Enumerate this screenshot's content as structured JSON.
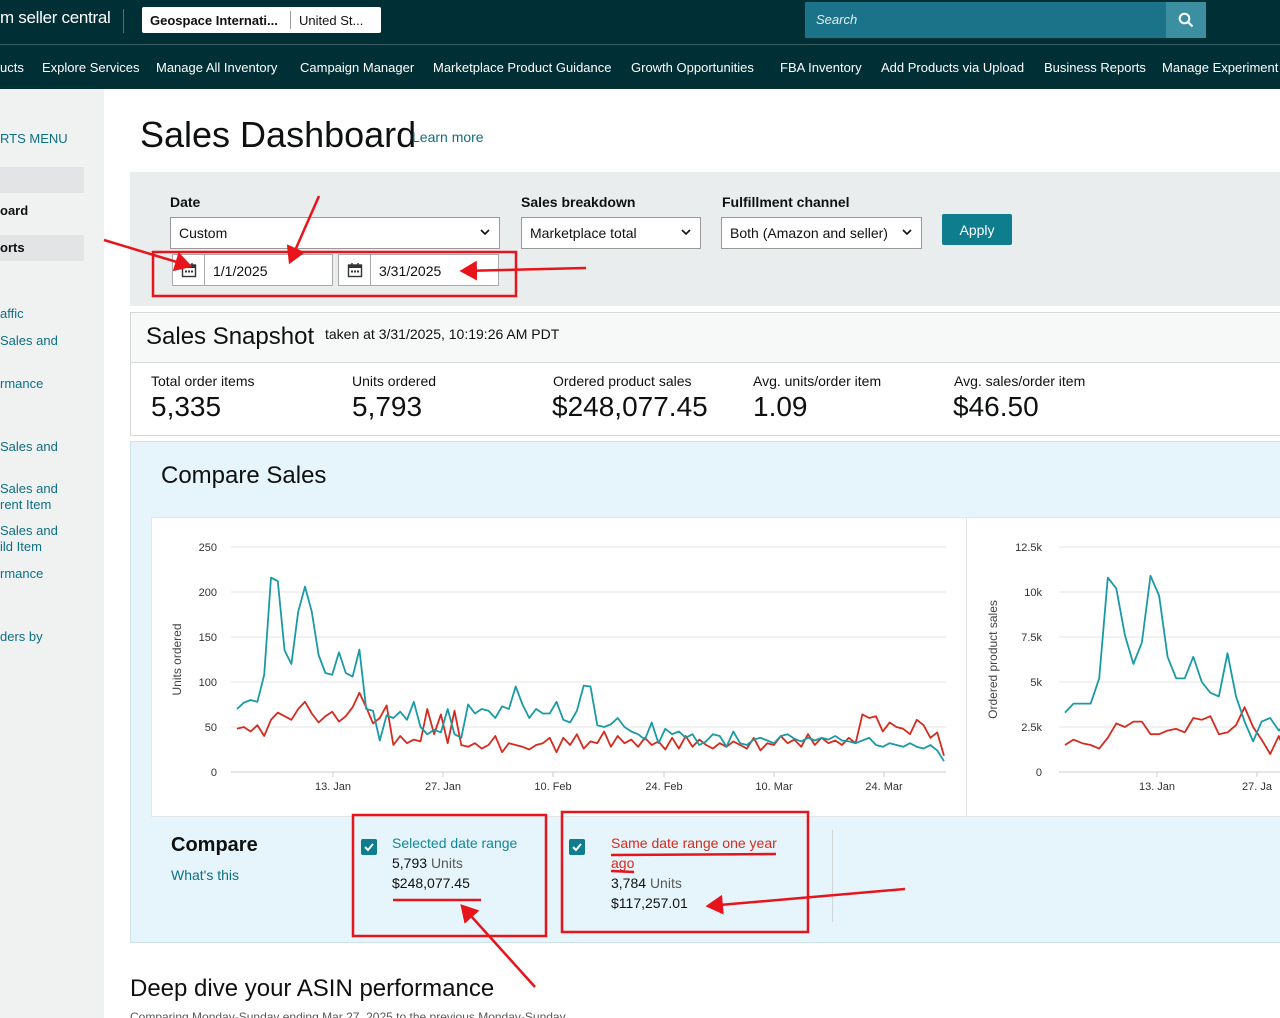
{
  "header": {
    "logo": "m seller central",
    "account_name": "Geospace Internati...",
    "account_region": "United St...",
    "search_placeholder": "Search"
  },
  "nav": [
    "ucts",
    "Explore Services",
    "Manage All Inventory",
    "Campaign Manager",
    "Marketplace Product Guidance",
    "Growth Opportunities",
    "FBA Inventory",
    "Add Products via Upload",
    "Business Reports",
    "Manage Experiment"
  ],
  "sidebar": {
    "title": "RTS MENU",
    "items": [
      "oard",
      "orts",
      "affic",
      "Sales and",
      "rmance",
      "Sales and",
      "Sales and",
      "rent Item",
      "Sales and",
      "ild Item",
      "rmance",
      "ders by"
    ]
  },
  "page": {
    "title": "Sales Dashboard",
    "learn_more": "Learn more"
  },
  "filters": {
    "date_label": "Date",
    "date_value": "Custom",
    "breakdown_label": "Sales breakdown",
    "breakdown_value": "Marketplace total",
    "channel_label": "Fulfillment channel",
    "channel_value": "Both (Amazon and seller)",
    "apply": "Apply",
    "start_date": "1/1/2025",
    "end_date": "3/31/2025"
  },
  "snapshot": {
    "title": "Sales Snapshot",
    "taken": "taken at 3/31/2025, 10:19:26 AM PDT",
    "metrics": [
      {
        "label": "Total order items",
        "value": "5,335"
      },
      {
        "label": "Units ordered",
        "value": "5,793"
      },
      {
        "label": "Ordered product sales",
        "value": "$248,077.45"
      },
      {
        "label": "Avg. units/order item",
        "value": "1.09"
      },
      {
        "label": "Avg. sales/order item",
        "value": "$46.50"
      }
    ]
  },
  "compare_sales": {
    "title": "Compare Sales",
    "compare_label": "Compare",
    "whats_this": "What's this",
    "selected": {
      "title": "Selected date range",
      "units": "5,793",
      "units_label": "Units",
      "sales": "$248,077.45"
    },
    "previous": {
      "title": "Same date range one year ago",
      "units": "3,784",
      "units_label": "Units",
      "sales": "$117,257.01"
    }
  },
  "deep_dive": {
    "title": "Deep dive your ASIN performance",
    "subtitle": "Comparing Monday-Sunday ending Mar 27, 2025 to the previous Monday-Sunday"
  },
  "colors": {
    "selected": "#1a9aa5",
    "previous": "#d52b1e",
    "annotation": "#e8141b"
  },
  "chart_data": [
    {
      "type": "line",
      "ylabel": "Units ordered",
      "ylim": [
        0,
        250
      ],
      "yticks": [
        "0",
        "50",
        "100",
        "150",
        "200",
        "250"
      ],
      "xticks": [
        "13. Jan",
        "27. Jan",
        "10. Feb",
        "24. Feb",
        "10. Mar",
        "24. Mar"
      ],
      "series": [
        {
          "name": "Selected date range",
          "color": "#1a9aa5",
          "values": [
            70,
            77,
            80,
            78,
            108,
            216,
            212,
            135,
            120,
            178,
            206,
            178,
            130,
            110,
            108,
            133,
            110,
            106,
            136,
            70,
            68,
            35,
            63,
            60,
            67,
            58,
            78,
            50,
            42,
            47,
            44,
            70,
            42,
            38,
            75,
            65,
            70,
            68,
            60,
            73,
            70,
            95,
            75,
            60,
            70,
            65,
            65,
            78,
            58,
            55,
            68,
            96,
            95,
            52,
            50,
            53,
            60,
            50,
            45,
            42,
            36,
            55,
            32,
            48,
            42,
            45,
            38,
            42,
            30,
            34,
            42,
            40,
            28,
            45,
            32,
            30,
            36,
            38,
            35,
            32,
            40,
            42,
            37,
            34,
            38,
            35,
            38,
            36,
            40,
            35,
            34,
            32,
            35,
            38,
            30,
            28,
            32,
            30,
            28,
            32,
            28,
            26,
            30,
            24,
            12
          ]
        },
        {
          "name": "Same date range one year ago",
          "color": "#d52b1e",
          "values": [
            48,
            50,
            45,
            52,
            40,
            58,
            66,
            62,
            58,
            70,
            78,
            65,
            55,
            62,
            67,
            56,
            62,
            72,
            88,
            72,
            54,
            60,
            74,
            30,
            40,
            32,
            36,
            34,
            70,
            42,
            64,
            32,
            68,
            30,
            28,
            32,
            26,
            30,
            40,
            22,
            32,
            30,
            28,
            25,
            30,
            32,
            38,
            22,
            38,
            30,
            42,
            26,
            34,
            32,
            45,
            28,
            40,
            32,
            36,
            28,
            38,
            30,
            34,
            25,
            38,
            26,
            40,
            28,
            36,
            30,
            26,
            32,
            28,
            34,
            30,
            26,
            38,
            24,
            32,
            30,
            40,
            32,
            36,
            28,
            42,
            30,
            38,
            32,
            35,
            30,
            38,
            32,
            64,
            60,
            62,
            45,
            55,
            50,
            48,
            42,
            58,
            52,
            38,
            44,
            18
          ]
        }
      ]
    },
    {
      "type": "line",
      "ylabel": "Ordered product sales",
      "ylim": [
        0,
        12500
      ],
      "yticks": [
        "0",
        "2.5k",
        "5k",
        "7.5k",
        "10k",
        "12.5k"
      ],
      "xticks": [
        "13. Jan",
        "27. Ja"
      ],
      "series": [
        {
          "name": "Selected date range",
          "color": "#1a9aa5",
          "values": [
            3300,
            3800,
            3800,
            3800,
            5200,
            10800,
            10200,
            7600,
            6000,
            7200,
            10900,
            9800,
            6400,
            5200,
            5200,
            6400,
            5000,
            4400,
            4200,
            6600,
            4200,
            2800,
            1700,
            2800,
            3000,
            2300,
            2800,
            1600
          ]
        },
        {
          "name": "Same date range one year ago",
          "color": "#d52b1e",
          "values": [
            1500,
            1800,
            1600,
            1500,
            1300,
            1900,
            2700,
            2500,
            2800,
            2800,
            2100,
            2100,
            2300,
            2400,
            2200,
            3000,
            2900,
            3100,
            2100,
            2200,
            2600,
            3600,
            2500,
            1800,
            1000,
            2000,
            800,
            1500
          ]
        }
      ]
    }
  ]
}
